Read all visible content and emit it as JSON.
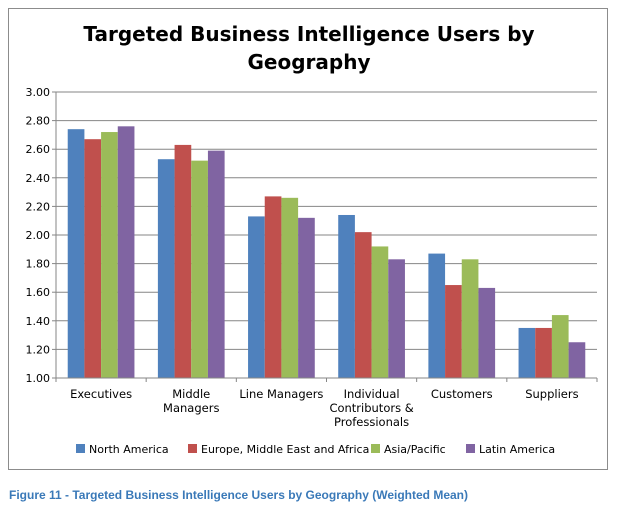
{
  "chart_data": {
    "type": "bar",
    "title_lines": [
      "Targeted Business Intelligence Users by",
      "Geography"
    ],
    "categories": [
      [
        "Executives"
      ],
      [
        "Middle",
        "Managers"
      ],
      [
        "Line Managers"
      ],
      [
        "Individual",
        "Contributors &",
        "Professionals"
      ],
      [
        "Customers"
      ],
      [
        "Suppliers"
      ]
    ],
    "series": [
      {
        "name": "North America",
        "color": "#4f81bd",
        "values": [
          2.74,
          2.53,
          2.13,
          2.14,
          1.87,
          1.35
        ]
      },
      {
        "name": "Europe, Middle East and Africa",
        "color": "#c0504d",
        "values": [
          2.67,
          2.63,
          2.27,
          2.02,
          1.65,
          1.35
        ]
      },
      {
        "name": "Asia/Pacific",
        "color": "#9bbb59",
        "values": [
          2.72,
          2.52,
          2.26,
          1.92,
          1.83,
          1.44
        ]
      },
      {
        "name": "Latin America",
        "color": "#8064a2",
        "values": [
          2.76,
          2.59,
          2.12,
          1.83,
          1.63,
          1.25
        ]
      }
    ],
    "ylim": [
      1.0,
      3.0
    ],
    "yticks": [
      "1.00",
      "1.20",
      "1.40",
      "1.60",
      "1.80",
      "2.00",
      "2.20",
      "2.40",
      "2.60",
      "2.80",
      "3.00"
    ],
    "grid": true,
    "legend_position": "bottom"
  },
  "caption": "Figure 11 - Targeted Business Intelligence Users by Geography (Weighted Mean)"
}
